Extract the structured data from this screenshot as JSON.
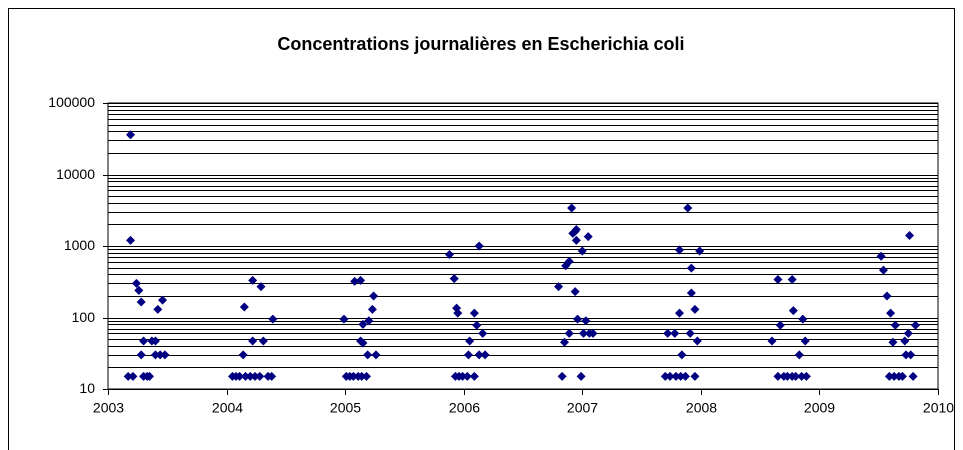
{
  "chart_data": {
    "type": "scatter",
    "title": "Concentrations journalières en Escherichia coli",
    "color": "#000080",
    "marker": "diamond",
    "log_y": true,
    "grid": true,
    "minor_grid": true,
    "xlim": [
      2003,
      2010
    ],
    "xticks": [
      2003,
      2004,
      2005,
      2006,
      2007,
      2008,
      2009,
      2010
    ],
    "ylim": [
      10,
      100000
    ],
    "yticks": [
      10,
      100,
      1000,
      10000,
      100000
    ],
    "x": [
      2003.17,
      2003.19,
      2003.19,
      2003.21,
      2003.24,
      2003.26,
      2003.28,
      2003.28,
      2003.3,
      2003.3,
      2003.33,
      2003.35,
      2003.37,
      2003.4,
      2003.4,
      2003.42,
      2003.44,
      2003.46,
      2003.48,
      2004.05,
      2004.08,
      2004.11,
      2004.14,
      2004.15,
      2004.16,
      2004.2,
      2004.22,
      2004.22,
      2004.24,
      2004.28,
      2004.29,
      2004.31,
      2004.35,
      2004.38,
      2004.39,
      2004.99,
      2005.01,
      2005.04,
      2005.07,
      2005.08,
      2005.11,
      2005.13,
      2005.13,
      2005.14,
      2005.15,
      2005.15,
      2005.18,
      2005.19,
      2005.2,
      2005.23,
      2005.24,
      2005.26,
      2005.88,
      2005.92,
      2005.93,
      2005.94,
      2005.95,
      2005.96,
      2005.99,
      2006.03,
      2006.04,
      2006.05,
      2006.09,
      2006.09,
      2006.11,
      2006.13,
      2006.13,
      2006.16,
      2006.18,
      2006.8,
      2006.83,
      2006.85,
      2006.86,
      2006.89,
      2006.89,
      2006.91,
      2006.92,
      2006.94,
      2006.95,
      2006.94,
      2006.95,
      2006.96,
      2006.99,
      2007.0,
      2007.01,
      2007.03,
      2007.05,
      2007.06,
      2007.09,
      2007.7,
      2007.72,
      2007.74,
      2007.78,
      2007.79,
      2007.82,
      2007.82,
      2007.83,
      2007.84,
      2007.87,
      2007.89,
      2007.91,
      2007.92,
      2007.92,
      2007.95,
      2007.95,
      2007.97,
      2007.99,
      2008.6,
      2008.65,
      2008.65,
      2008.67,
      2008.7,
      2008.73,
      2008.77,
      2008.77,
      2008.78,
      2008.8,
      2008.83,
      2008.85,
      2008.86,
      2008.88,
      2008.89,
      2009.52,
      2009.54,
      2009.57,
      2009.59,
      2009.6,
      2009.62,
      2009.63,
      2009.64,
      2009.67,
      2009.7,
      2009.72,
      2009.73,
      2009.75,
      2009.76,
      2009.77,
      2009.79,
      2009.81
    ],
    "values": [
      15,
      36000,
      1200,
      15,
      300,
      240,
      165,
      30,
      47,
      15,
      15,
      15,
      47,
      47,
      30,
      130,
      30,
      175,
      30,
      15,
      15,
      15,
      30,
      140,
      15,
      15,
      330,
      47,
      15,
      15,
      270,
      47,
      15,
      15,
      95,
      95,
      15,
      15,
      15,
      320,
      15,
      47,
      330,
      15,
      44,
      80,
      15,
      30,
      90,
      130,
      200,
      30,
      760,
      350,
      15,
      135,
      115,
      15,
      15,
      15,
      30,
      47,
      115,
      15,
      78,
      1000,
      30,
      60,
      30,
      270,
      15,
      45,
      530,
      610,
      60,
      3400,
      1500,
      1600,
      1700,
      230,
      1200,
      95,
      15,
      850,
      60,
      90,
      1350,
      60,
      60,
      15,
      60,
      15,
      60,
      15,
      880,
      115,
      15,
      30,
      15,
      3400,
      60,
      490,
      220,
      130,
      15,
      47,
      850,
      47,
      340,
      15,
      78,
      15,
      15,
      340,
      15,
      125,
      15,
      30,
      15,
      95,
      47,
      15,
      720,
      460,
      200,
      15,
      115,
      45,
      15,
      78,
      15,
      15,
      47,
      30,
      60,
      1400,
      30,
      15,
      78
    ]
  }
}
